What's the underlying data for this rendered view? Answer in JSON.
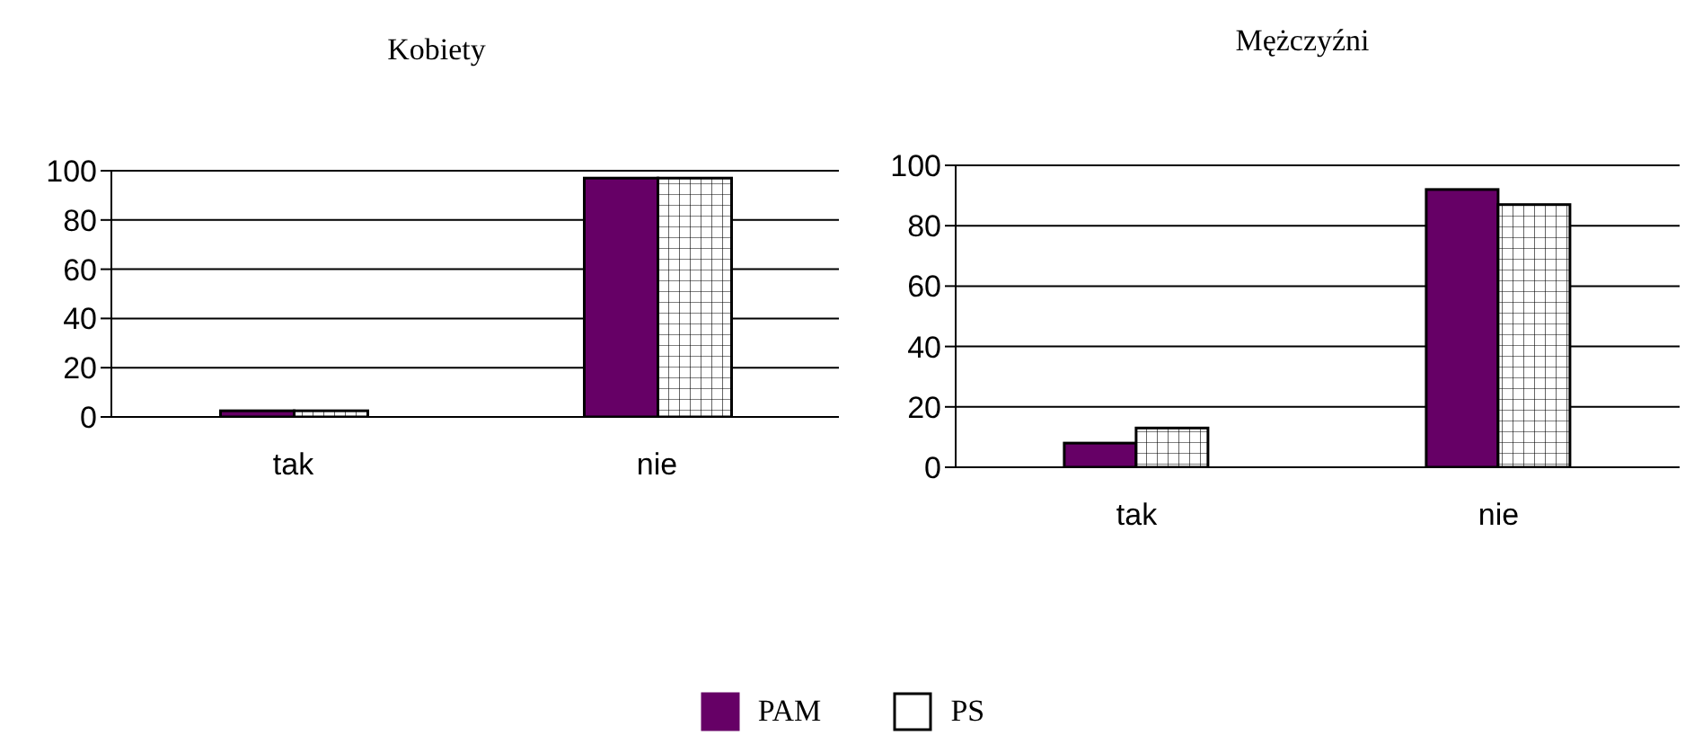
{
  "chart_data": [
    {
      "type": "bar",
      "title": "Kobiety",
      "categories": [
        "tak",
        "nie"
      ],
      "series": [
        {
          "name": "PAM",
          "color": "#660066",
          "values": [
            2.5,
            97
          ]
        },
        {
          "name": "PS",
          "color": "#ffffff",
          "values": [
            2.5,
            97
          ]
        }
      ],
      "ylim": [
        0,
        100
      ],
      "yticks": [
        0,
        20,
        40,
        60,
        80,
        100
      ],
      "grid": "y",
      "legend": "bottom"
    },
    {
      "type": "bar",
      "title": "Mężczyźni",
      "categories": [
        "tak",
        "nie"
      ],
      "series": [
        {
          "color": "#660066",
          "values": [
            8,
            92
          ]
        },
        {
          "color": "#ffffff",
          "values": [
            13,
            87
          ]
        }
      ],
      "ylim": [
        0,
        100
      ],
      "yticks": [
        0,
        20,
        40,
        60,
        80,
        100
      ],
      "grid": "y"
    }
  ]
}
